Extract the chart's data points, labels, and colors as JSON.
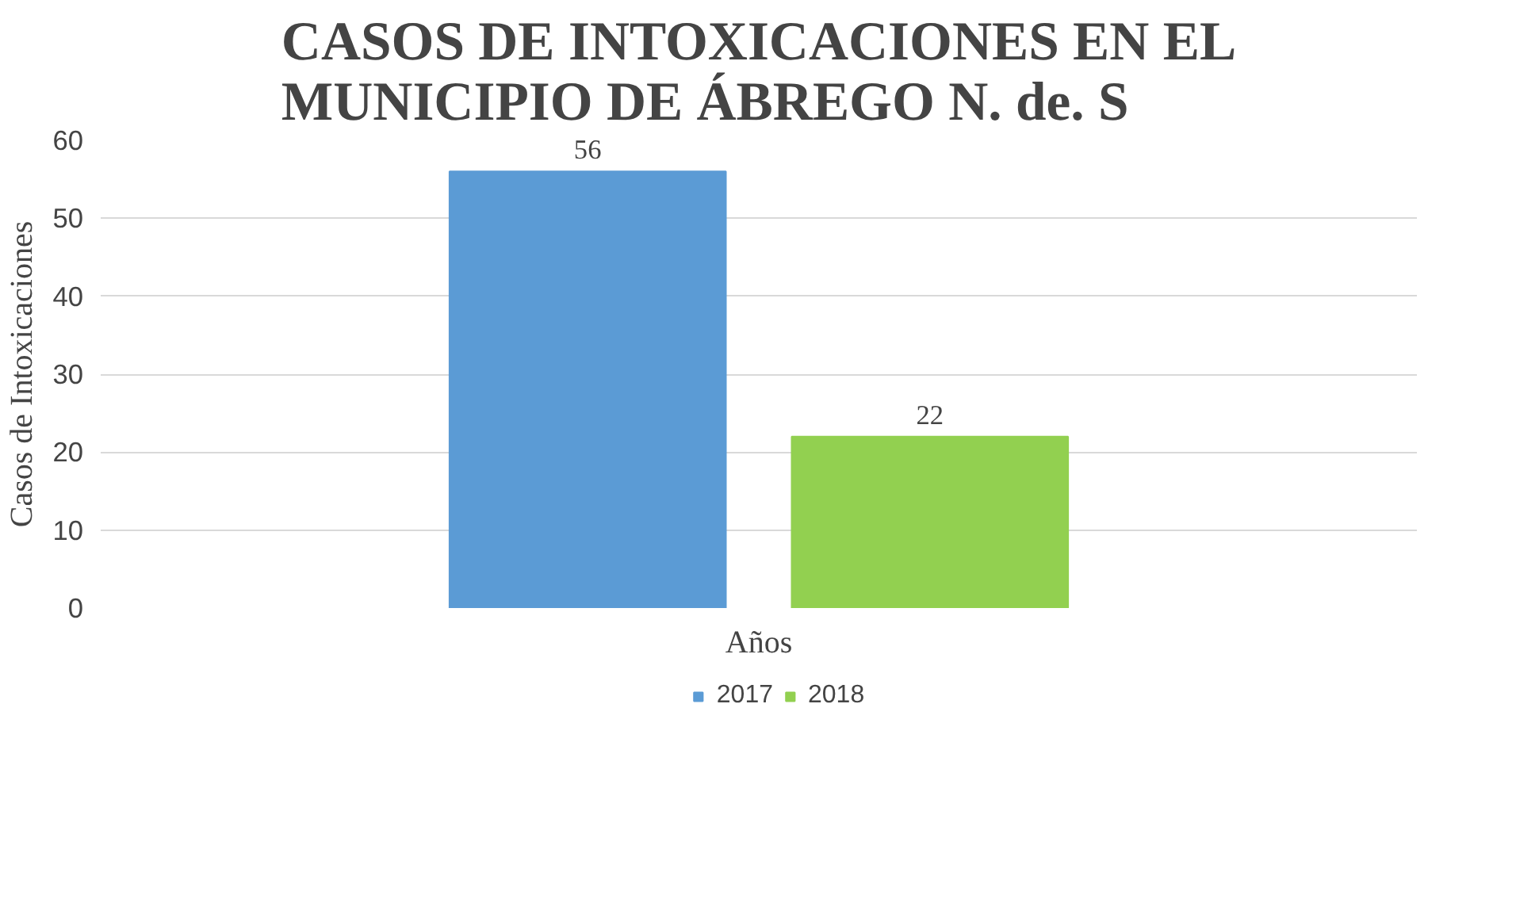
{
  "chart_data": {
    "type": "bar",
    "title": "CASOS DE INTOXICACIONES EN EL MUNICIPIO DE ÁBREGO N. de. S",
    "xlabel": "Años",
    "ylabel": "Casos de Intoxicaciones",
    "categories": [
      null
    ],
    "series": [
      {
        "name": "2017",
        "color": "#5b9bd5",
        "values": [
          56
        ]
      },
      {
        "name": "2018",
        "color": "#92d050",
        "values": [
          22
        ]
      }
    ],
    "ylim": [
      0,
      60
    ],
    "yticks": [
      0,
      10,
      20,
      30,
      40,
      50,
      60
    ],
    "grid": "y",
    "legend": "bottom",
    "data_labels": true
  }
}
